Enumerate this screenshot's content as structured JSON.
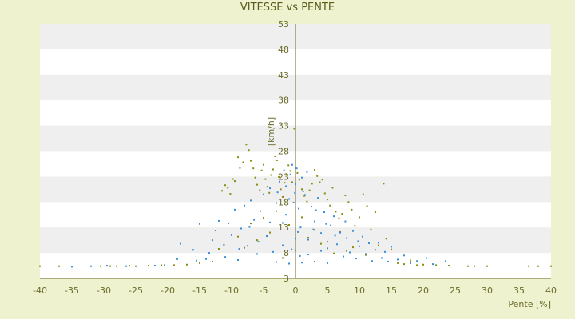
{
  "chart_data": {
    "type": "scatter",
    "title": "VITESSE vs PENTE",
    "xlabel": "Pente [%]",
    "ylabel": "[km/h]",
    "xlim": [
      -40,
      40
    ],
    "ylim": [
      3,
      53
    ],
    "x_ticks": [
      -40,
      -35,
      -30,
      -25,
      -20,
      -15,
      -10,
      -5,
      0,
      5,
      10,
      15,
      20,
      25,
      30,
      35,
      40
    ],
    "y_ticks": [
      3,
      8,
      13,
      18,
      23,
      28,
      33,
      38,
      43,
      48,
      53
    ],
    "grid": true,
    "legend": "none",
    "colors": {
      "background": "#eef2cf",
      "plot_band_light": "#ffffff",
      "plot_band_dark": "#efefef",
      "axis": "#6b6b2a",
      "series_blue": "#3a8fd8",
      "series_olive": "#8c8c10"
    },
    "series": [
      {
        "color": "#8c8c10",
        "points": [
          [
            -40,
            5.4
          ],
          [
            -37,
            5.4
          ],
          [
            -30.5,
            5.4
          ],
          [
            -29,
            5.4
          ],
          [
            -28,
            5.4
          ],
          [
            -26,
            5.5
          ],
          [
            -25,
            5.4
          ],
          [
            -23,
            5.5
          ],
          [
            -21,
            5.6
          ],
          [
            -19,
            5.6
          ],
          [
            -17,
            5.7
          ],
          [
            -15,
            6
          ],
          [
            -13,
            6.3
          ],
          [
            -12,
            8.8
          ],
          [
            -11.5,
            20.2
          ],
          [
            -11,
            21.3
          ],
          [
            -10.6,
            20.8
          ],
          [
            -10.2,
            19.6
          ],
          [
            -9.8,
            22.5
          ],
          [
            -9.5,
            22.1
          ],
          [
            -9,
            26.8
          ],
          [
            -8.7,
            24.7
          ],
          [
            -8.2,
            25.8
          ],
          [
            -7.7,
            29.3
          ],
          [
            -7.3,
            28.2
          ],
          [
            -7,
            26.1
          ],
          [
            -6.6,
            24.6
          ],
          [
            -6.3,
            22.8
          ],
          [
            -6,
            21.4
          ],
          [
            -5.6,
            20.3
          ],
          [
            -5.3,
            24.2
          ],
          [
            -5,
            25.3
          ],
          [
            -4.7,
            22.5
          ],
          [
            -4.4,
            21
          ],
          [
            -4.1,
            19.8
          ],
          [
            -3.8,
            23.3
          ],
          [
            -3.5,
            24.4
          ],
          [
            -3.2,
            27
          ],
          [
            -2.9,
            26.2
          ],
          [
            -2.6,
            22.9
          ],
          [
            -2.3,
            20.5
          ],
          [
            -2,
            19
          ],
          [
            -1.7,
            21.8
          ],
          [
            -1.4,
            23.5
          ],
          [
            -1.1,
            25.2
          ],
          [
            -0.8,
            24.1
          ],
          [
            -0.5,
            21.9
          ],
          [
            -0.2,
            32.4
          ],
          [
            0.3,
            23.7
          ],
          [
            0.6,
            22.4
          ],
          [
            1,
            20.5
          ],
          [
            1.4,
            19.2
          ],
          [
            1.8,
            18.1
          ],
          [
            2.2,
            20.3
          ],
          [
            2.6,
            21.6
          ],
          [
            3,
            24.3
          ],
          [
            3.4,
            23.1
          ],
          [
            3.8,
            21.9
          ],
          [
            4.2,
            22.4
          ],
          [
            4.6,
            19.7
          ],
          [
            5,
            18.5
          ],
          [
            5.4,
            17.3
          ],
          [
            5.8,
            20.8
          ],
          [
            6.3,
            16.1
          ],
          [
            6.8,
            14.8
          ],
          [
            7.3,
            15.7
          ],
          [
            7.8,
            19.3
          ],
          [
            8.3,
            18
          ],
          [
            8.8,
            16.5
          ],
          [
            9.3,
            13.3
          ],
          [
            10,
            15
          ],
          [
            10.6,
            19.5
          ],
          [
            11.2,
            17.2
          ],
          [
            11.8,
            12.6
          ],
          [
            12.5,
            16
          ],
          [
            13,
            9.5
          ],
          [
            13.8,
            21.6
          ],
          [
            14.2,
            10.8
          ],
          [
            15,
            8.7
          ],
          [
            16,
            6
          ],
          [
            17,
            5.8
          ],
          [
            18,
            6.5
          ],
          [
            19,
            5.6
          ],
          [
            20,
            5.7
          ],
          [
            22,
            5.6
          ],
          [
            24,
            5.5
          ],
          [
            27,
            5.4
          ],
          [
            28,
            5.4
          ],
          [
            30,
            5.4
          ],
          [
            36.5,
            5.4
          ],
          [
            38,
            5.4
          ],
          [
            40,
            5.4
          ],
          [
            -8,
            9
          ],
          [
            -6,
            10.5
          ],
          [
            -4,
            12
          ],
          [
            -2,
            7
          ],
          [
            0,
            8.5
          ],
          [
            2,
            11
          ],
          [
            4,
            9.8
          ],
          [
            6,
            7.9
          ],
          [
            -1,
            13.5
          ],
          [
            1,
            15
          ],
          [
            3,
            12.5
          ],
          [
            -3,
            16.2
          ],
          [
            5,
            10.2
          ],
          [
            7,
            12.1
          ],
          [
            9,
            9.1
          ],
          [
            -7,
            13.8
          ],
          [
            -9,
            11.2
          ],
          [
            -5,
            14.9
          ],
          [
            8,
            8.4
          ],
          [
            11,
            7.6
          ]
        ]
      },
      {
        "color": "#3a8fd8",
        "points": [
          [
            -35,
            5.3
          ],
          [
            -32,
            5.4
          ],
          [
            -29.5,
            5.5
          ],
          [
            -26.5,
            5.4
          ],
          [
            -22,
            5.5
          ],
          [
            -20.5,
            5.6
          ],
          [
            -18.5,
            6.8
          ],
          [
            -18,
            9.8
          ],
          [
            -16,
            8.6
          ],
          [
            -15.5,
            6.5
          ],
          [
            -15,
            13.7
          ],
          [
            -14,
            6.8
          ],
          [
            -13,
            10.5
          ],
          [
            -12.5,
            12.4
          ],
          [
            -12,
            14.3
          ],
          [
            -11,
            7.2
          ],
          [
            -10.5,
            13.8
          ],
          [
            -10,
            11.5
          ],
          [
            -9.5,
            16.5
          ],
          [
            -9,
            6.6
          ],
          [
            -8.5,
            12.8
          ],
          [
            -8,
            17.3
          ],
          [
            -7.5,
            9.4
          ],
          [
            -7,
            18.3
          ],
          [
            -6.5,
            14.5
          ],
          [
            -6,
            7.8
          ],
          [
            -5.5,
            16.2
          ],
          [
            -5,
            19.5
          ],
          [
            -4.5,
            11.3
          ],
          [
            -4,
            20.7
          ],
          [
            -3.5,
            8.2
          ],
          [
            -3,
            17.8
          ],
          [
            -2.5,
            22
          ],
          [
            -2,
            13.9
          ],
          [
            -1.5,
            21.1
          ],
          [
            -1,
            18.6
          ],
          [
            -0.5,
            25.3
          ],
          [
            0,
            21.5
          ],
          [
            0.5,
            16.7
          ],
          [
            1,
            22.8
          ],
          [
            1.5,
            19.4
          ],
          [
            2,
            10.6
          ],
          [
            2.5,
            17.1
          ],
          [
            3,
            14.2
          ],
          [
            3.5,
            18.8
          ],
          [
            4,
            11.9
          ],
          [
            4.5,
            16
          ],
          [
            5,
            8.9
          ],
          [
            5.5,
            13.4
          ],
          [
            6,
            15.2
          ],
          [
            6.5,
            9.7
          ],
          [
            7,
            12
          ],
          [
            7.5,
            7.3
          ],
          [
            8,
            10.9
          ],
          [
            8.5,
            8.1
          ],
          [
            9,
            12.3
          ],
          [
            9.5,
            6.9
          ],
          [
            10,
            9.3
          ],
          [
            10.5,
            11.2
          ],
          [
            11,
            7.8
          ],
          [
            11.5,
            9.9
          ],
          [
            12,
            6.4
          ],
          [
            12.5,
            8.6
          ],
          [
            13,
            10
          ],
          [
            13.5,
            7
          ],
          [
            14,
            8.2
          ],
          [
            14.5,
            6.3
          ],
          [
            15,
            9.2
          ],
          [
            16,
            6.7
          ],
          [
            17,
            7.5
          ],
          [
            18,
            6
          ],
          [
            19,
            6.4
          ],
          [
            20.5,
            7
          ],
          [
            21.5,
            5.8
          ],
          [
            23.5,
            6.4
          ],
          [
            -3,
            6.2
          ],
          [
            -1,
            5.9
          ],
          [
            1,
            6.1
          ],
          [
            3,
            6.3
          ],
          [
            5,
            6
          ],
          [
            -2,
            9.5
          ],
          [
            0,
            10.8
          ],
          [
            2,
            7.7
          ],
          [
            4,
            8.4
          ],
          [
            -4,
            14
          ],
          [
            -1.5,
            15.5
          ],
          [
            0.8,
            13
          ],
          [
            2.8,
            12.6
          ],
          [
            -0.3,
            17.9
          ],
          [
            1.2,
            20.1
          ],
          [
            -2.8,
            19.9
          ],
          [
            3.2,
            16.4
          ],
          [
            4.8,
            13.7
          ],
          [
            6.2,
            11.4
          ],
          [
            -5.8,
            10.2
          ],
          [
            -7.2,
            13.1
          ],
          [
            -8.8,
            8.8
          ],
          [
            -11.2,
            9.6
          ],
          [
            -13.5,
            8
          ],
          [
            7.8,
            14.2
          ],
          [
            9.8,
            10.3
          ],
          [
            -0.8,
            23.4
          ],
          [
            0.2,
            24.6
          ],
          [
            -1.8,
            24.2
          ],
          [
            1.8,
            23.9
          ],
          [
            -0.1,
            19.8
          ],
          [
            0.4,
            12.1
          ],
          [
            -0.6,
            8.7
          ],
          [
            0.7,
            7.4
          ]
        ]
      }
    ]
  }
}
